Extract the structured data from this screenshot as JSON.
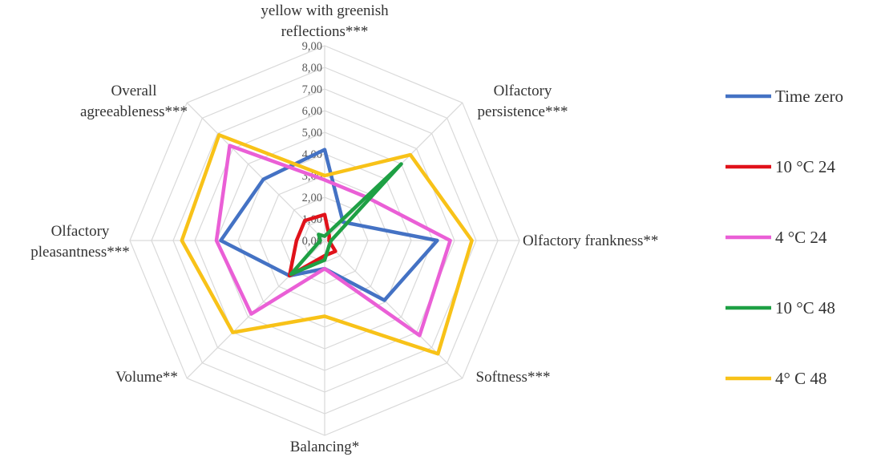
{
  "chart_data": {
    "type": "radar",
    "axes": [
      [
        "yellow with greenish",
        "reflections***"
      ],
      [
        "Olfactory",
        "persistence***"
      ],
      [
        "Olfactory frankness**"
      ],
      [
        "Softness***"
      ],
      [
        "Balancing*"
      ],
      [
        "Volume**"
      ],
      [
        "Olfactory",
        "pleasantness***"
      ],
      [
        "Overall",
        "agreeableness***"
      ]
    ],
    "tick_labels": [
      "0,00",
      "1,00",
      "2,00",
      "3,00",
      "4,00",
      "5,00",
      "6,00",
      "7,00",
      "8,00",
      "9,00"
    ],
    "range": [
      0,
      9
    ],
    "grid": true,
    "legend_position": "right",
    "series": [
      {
        "name": "Time zero",
        "color": "#4472c4",
        "values": [
          4.2,
          1.2,
          5.2,
          3.9,
          1.3,
          2.3,
          4.8,
          4.0
        ]
      },
      {
        "name": "10 °C 24",
        "color": "#e0121a",
        "values": [
          1.2,
          0.3,
          0.2,
          0.7,
          0.7,
          2.3,
          1.3,
          1.3
        ]
      },
      {
        "name": "4 °C 24",
        "color": "#ea5fd6",
        "values": [
          2.8,
          2.8,
          5.8,
          6.2,
          1.3,
          4.8,
          5.0,
          6.2
        ]
      },
      {
        "name": "10 °C 48",
        "color": "#1ea044",
        "values": [
          0.2,
          5.0,
          0.3,
          0.3,
          0.9,
          2.2,
          0.2,
          0.4
        ]
      },
      {
        "name": "4° C 48",
        "color": "#f8c218",
        "values": [
          3.0,
          5.6,
          6.8,
          7.4,
          3.5,
          6.0,
          6.6,
          6.9
        ]
      }
    ]
  }
}
